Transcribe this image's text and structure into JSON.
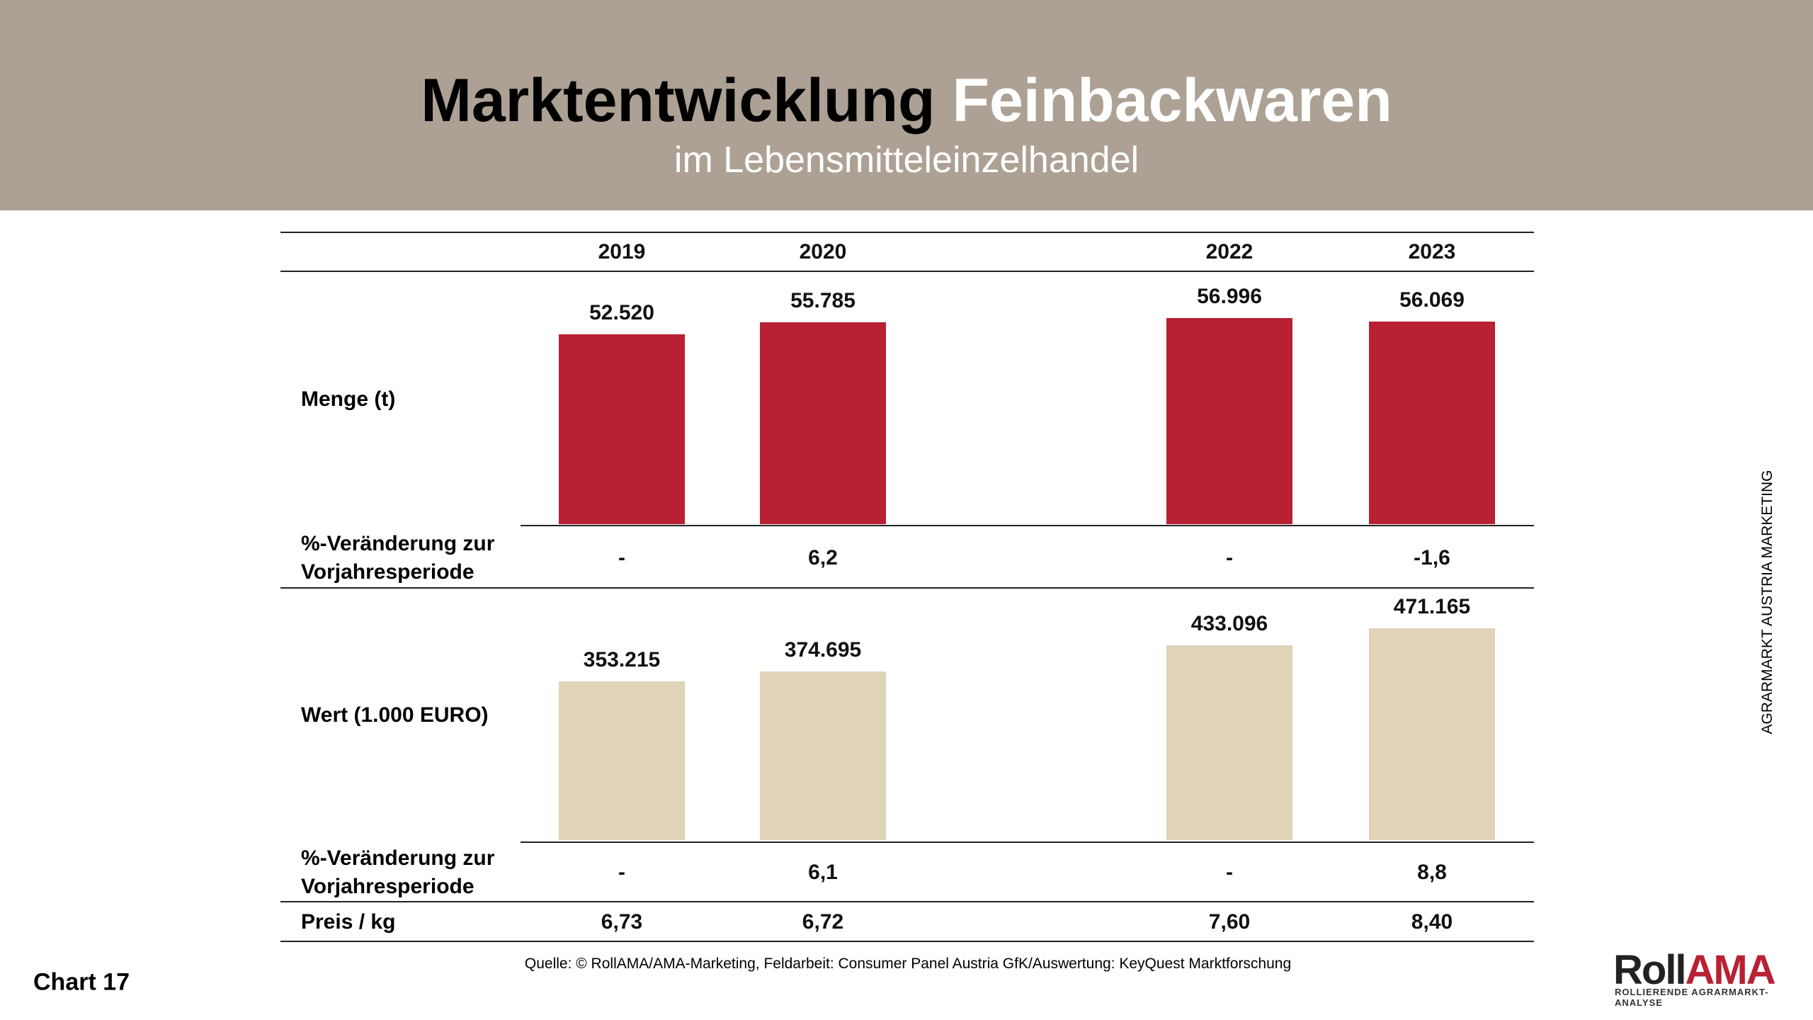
{
  "header": {
    "title_dark": "Marktentwicklung",
    "title_light": "Feinbackwaren",
    "subtitle": "im Lebensmitteleinzelhandel"
  },
  "side_label": "AGRARMARKT AUSTRIA MARKETING",
  "chart_label": "Chart 17",
  "source": "Quelle: © RollAMA/AMA-Marketing, Feldarbeit: Consumer Panel Austria GfK/Auswertung: KeyQuest Marktforschung",
  "logo": {
    "text_dark": "Roll",
    "text_red": "AMA",
    "tagline": "ROLLIERENDE AGRARMARKT-ANALYSE"
  },
  "chart_data": {
    "type": "bar",
    "categories": [
      "2019",
      "2020",
      "2022",
      "2023"
    ],
    "series": [
      {
        "name": "Menge (t)",
        "color": "#b92033",
        "values": [
          52520,
          55785,
          56996,
          56069
        ],
        "value_labels": [
          "52.520",
          "55.785",
          "56.996",
          "56.069"
        ]
      },
      {
        "name": "Wert (1.000 EURO)",
        "color": "#dfd3b8",
        "values": [
          353215,
          374695,
          433096,
          471165
        ],
        "value_labels": [
          "353.215",
          "374.695",
          "433.096",
          "471.165"
        ]
      }
    ],
    "rows": [
      {
        "label": "%-Veränderung zur Vorjahresperiode",
        "values": [
          "-",
          "6,2",
          "-",
          "-1,6"
        ]
      },
      {
        "label": "%-Veränderung zur Vorjahresperiode",
        "values": [
          "-",
          "6,1",
          "-",
          "8,8"
        ]
      },
      {
        "label": "Preis / kg",
        "values": [
          "6,73",
          "6,72",
          "7,60",
          "8,40"
        ]
      }
    ]
  }
}
